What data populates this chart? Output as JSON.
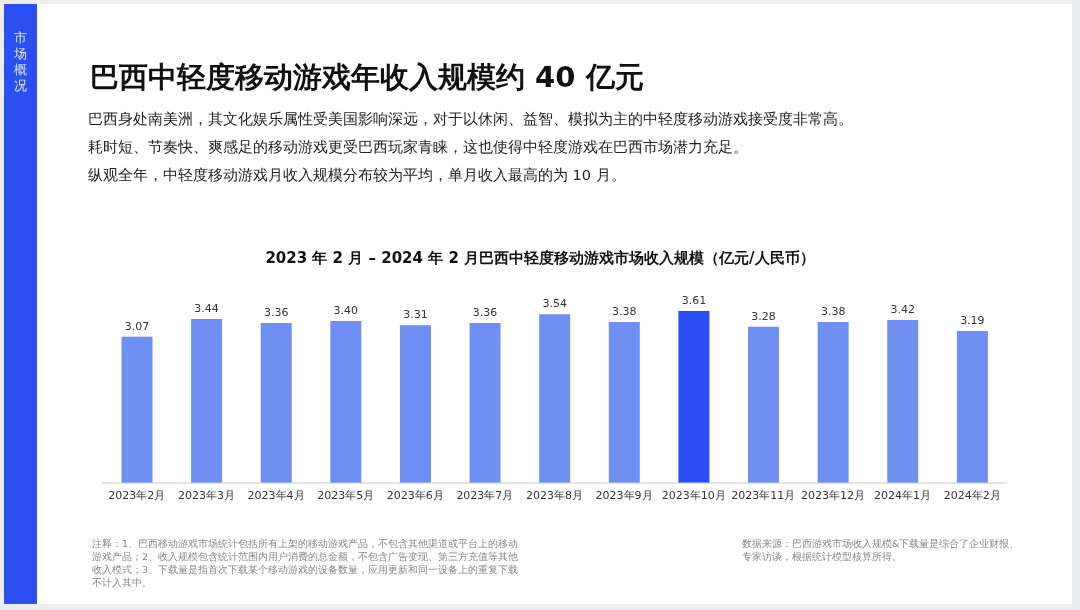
{
  "chart_data": {
    "type": "bar",
    "title": "巴西中轻度移动游戏年收入规模约 40 亿元",
    "subtitle": "2023 年 2 月 – 2024 年 2 月巴西中轻度移动游戏市场收入规模（亿元/人民币）",
    "categories": [
      "2023年2月",
      "2023年3月",
      "2023年4月",
      "2023年5月",
      "2023年6月",
      "2023年7月",
      "2023年8月",
      "2023年9月",
      "2023年10月",
      "2023年11月",
      "2023年12月",
      "2024年1月",
      "2024年2月"
    ],
    "values": [
      3.07,
      3.44,
      3.36,
      3.4,
      3.31,
      3.36,
      3.54,
      3.38,
      3.61,
      3.28,
      3.38,
      3.42,
      3.19
    ],
    "colors": [
      "#6f8ff3",
      "#6f8ff3",
      "#6f8ff3",
      "#6f8ff3",
      "#6f8ff3",
      "#6f8ff3",
      "#6f8ff3",
      "#6f8ff3",
      "#2a4cf5",
      "#6f8ff3",
      "#6f8ff3",
      "#6f8ff3",
      "#6f8ff3"
    ],
    "value_labels": [
      "3.07",
      "3.44",
      "3.36",
      "3.40",
      "3.31",
      "3.36",
      "3.54",
      "3.38",
      "3.61",
      "3.28",
      "3.38",
      "3.42",
      "3.19"
    ],
    "grid": false,
    "legend": false,
    "annotations": [
      "市场概况",
      "巴西身处南美洲，其文化娱乐属性受美国影响深远，对于以休闲、益智、模拟为主的中轻度移动游戏接受度非常高。",
      "耗时短、节奏快、爽感足的移动游戏更受巴西玩家青睐，这也使得中轻度游戏在巴西市场潜力充足。",
      "纵观全年，中轻度移动游戏月收入规模分布较为平均，单月收入最高的为 10 月。",
      "注释：1、巴西移动游戏市场统计包括所有上架的移动游戏产品，不包含其他渠道或平台上的移动游戏产品；2、收入规模包含统计范围内用户消费的总金额，不包含广告变现、第三方充值等其他收入模式；3、下载量是指首次下载某个移动游戏的设备数量，应用更新和同一设备上的重复下载不计入其中。",
      "数据来源：巴西游戏市场收入规模&下载量是综合了企业财报、专家访谈，根据统计模型核算所得。"
    ]
  }
}
